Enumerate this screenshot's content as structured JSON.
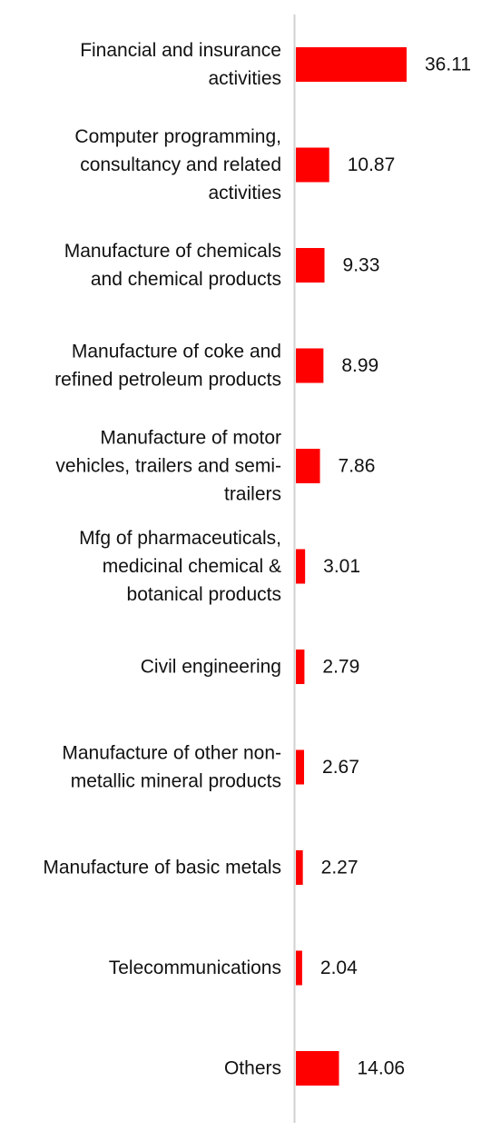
{
  "chart_data": {
    "type": "bar",
    "orientation": "horizontal",
    "title": "",
    "xlabel": "",
    "ylabel": "",
    "categories": [
      "Financial and insurance activities",
      "Computer programming, consultancy and related activities",
      "Manufacture of chemicals and chemical products",
      "Manufacture of coke and refined petroleum products",
      "Manufacture of motor vehicles, trailers and semi-trailers",
      "Mfg of pharmaceuticals, medicinal chemical & botanical products",
      "Civil engineering",
      "Manufacture of other non-metallic mineral products",
      "Manufacture of basic metals",
      "Telecommunications",
      "Others"
    ],
    "category_lines": [
      [
        "Financial and insurance",
        "activities"
      ],
      [
        "Computer programming,",
        "consultancy and related",
        "activities"
      ],
      [
        "Manufacture of chemicals",
        "and chemical products"
      ],
      [
        "Manufacture of coke and",
        "refined petroleum products"
      ],
      [
        "Manufacture of motor",
        "vehicles, trailers and semi-",
        "trailers"
      ],
      [
        "Mfg of pharmaceuticals,",
        "medicinal chemical &",
        "botanical products"
      ],
      [
        "Civil engineering"
      ],
      [
        "Manufacture of other non-",
        "metallic mineral products"
      ],
      [
        "Manufacture of basic metals"
      ],
      [
        "Telecommunications"
      ],
      [
        "Others"
      ]
    ],
    "values": [
      36.11,
      10.87,
      9.33,
      8.99,
      7.86,
      3.01,
      2.79,
      2.67,
      2.27,
      2.04,
      14.06
    ],
    "value_labels": [
      "36.11",
      "10.87",
      "9.33",
      "8.99",
      "7.86",
      "3.01",
      "2.79",
      "2.67",
      "2.27",
      "2.04",
      "14.06"
    ],
    "bar_color": "#ff0000",
    "axis_color": "#d0d0d0",
    "grid": false,
    "legend": "none"
  }
}
